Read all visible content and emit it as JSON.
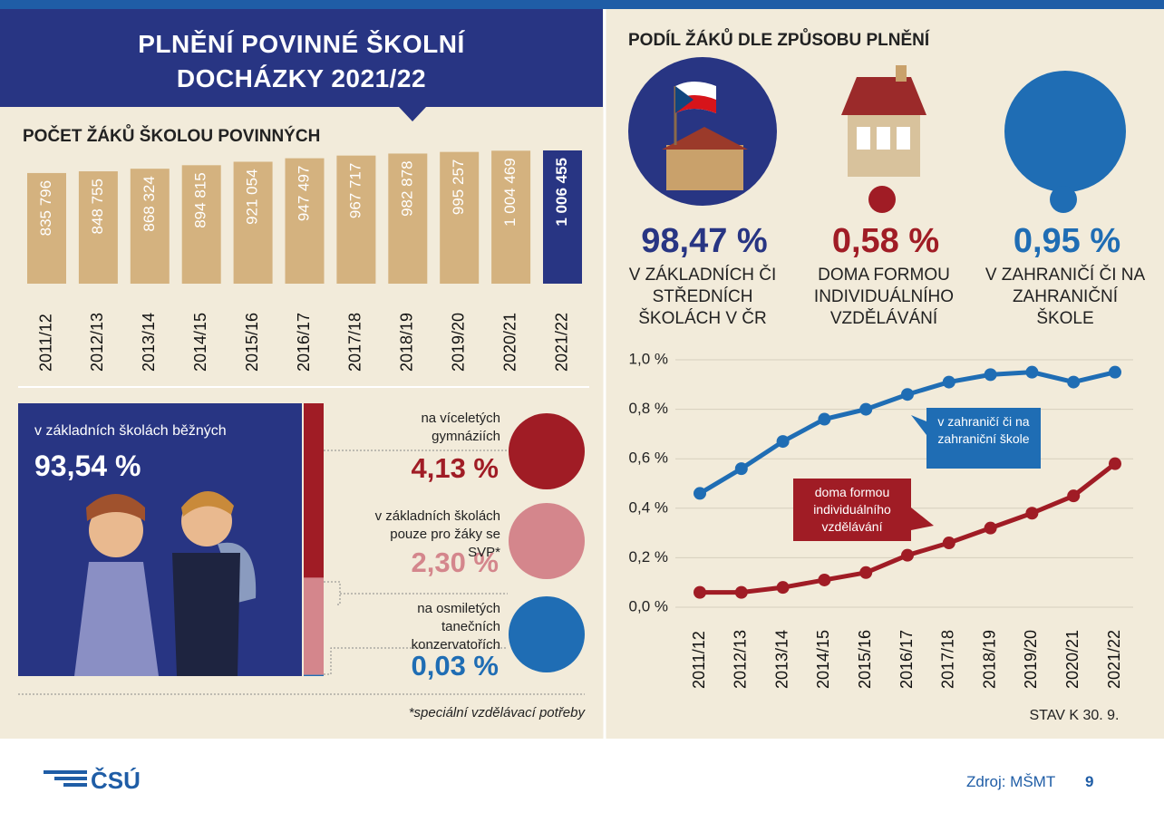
{
  "header": {
    "title": "PLNĚNÍ POVINNÉ ŠKOLNÍ DOCHÁZKY 2021/22"
  },
  "chart_data": [
    {
      "type": "bar",
      "title": "POČET ŽÁKŮ ŠKOLOU POVINNÝCH",
      "categories": [
        "2011/12",
        "2012/13",
        "2013/14",
        "2014/15",
        "2015/16",
        "2016/17",
        "2017/18",
        "2018/19",
        "2019/20",
        "2020/21",
        "2021/22"
      ],
      "values": [
        835796,
        848755,
        868324,
        894815,
        921054,
        947497,
        967717,
        982878,
        995257,
        1004469,
        1006455
      ],
      "value_labels": [
        "835 796",
        "848 755",
        "868 324",
        "894 815",
        "921 054",
        "947 497",
        "967 717",
        "982 878",
        "995 257",
        "1 004 469",
        "1 006 455"
      ],
      "colors": [
        "#d4b27f",
        "#d4b27f",
        "#d4b27f",
        "#d4b27f",
        "#d4b27f",
        "#d4b27f",
        "#d4b27f",
        "#d4b27f",
        "#d4b27f",
        "#d4b27f",
        "#283583"
      ]
    },
    {
      "type": "share",
      "title": "PODÍL ŽÁKŮ DLE ZPŮSOBU PLNĚNÍ",
      "categories": [
        "V ZÁKLADNÍCH ČI STŘEDNÍCH ŠKOLÁCH V ČR",
        "DOMA FORMOU INDIVIDUÁLNÍHO VZDĚLÁVÁNÍ",
        "V ZAHRANIČÍ ČI NA ZAHRANIČNÍ ŠKOLE"
      ],
      "values": [
        98.47,
        0.58,
        0.95
      ],
      "value_labels": [
        "98,47 %",
        "0,58 %",
        "0,95 %"
      ],
      "colors": [
        "#283583",
        "#a01c25",
        "#1f6db4"
      ]
    },
    {
      "type": "stack",
      "categories": [
        "v základních školách běžných",
        "na víceletých gymnáziích",
        "v základních školách pouze pro žáky se SVP*",
        "na osmiletých tanečních konzervatořích"
      ],
      "values": [
        93.54,
        4.13,
        2.3,
        0.03
      ],
      "value_labels": [
        "93,54 %",
        "4,13 %",
        "2,30 %",
        "0,03 %"
      ],
      "colors": [
        "#283583",
        "#a01c25",
        "#d4868c",
        "#1f6db4"
      ],
      "note": "*speciální vzdělávací potřeby"
    },
    {
      "type": "line",
      "categories": [
        "2011/12",
        "2012/13",
        "2013/14",
        "2014/15",
        "2015/16",
        "2016/17",
        "2017/18",
        "2018/19",
        "2019/20",
        "2020/21",
        "2021/22"
      ],
      "series": [
        {
          "name": "v zahraničí či na zahraniční škole",
          "color": "#1f6db4",
          "values": [
            0.46,
            0.56,
            0.67,
            0.76,
            0.8,
            0.86,
            0.91,
            0.94,
            0.95,
            0.91,
            0.95
          ]
        },
        {
          "name": "doma formou individuálního vzdělávání",
          "color": "#a01c25",
          "values": [
            0.06,
            0.06,
            0.08,
            0.11,
            0.14,
            0.21,
            0.26,
            0.32,
            0.38,
            0.45,
            0.58
          ]
        }
      ],
      "ylim": [
        0,
        1
      ],
      "yticks": [
        {
          "value": 0,
          "label": "0,0 %"
        },
        {
          "value": 0.2,
          "label": "0,2 %"
        },
        {
          "value": 0.4,
          "label": "0,4 %"
        },
        {
          "value": 0.6,
          "label": "0,6 %"
        },
        {
          "value": 0.8,
          "label": "0,8 %"
        },
        {
          "value": 1,
          "label": "1,0 %"
        }
      ],
      "grid": true,
      "note": "STAV K 30. 9."
    }
  ],
  "footer": {
    "logo": "ČSÚ",
    "source": "Zdroj: MŠMT",
    "page": "9"
  }
}
